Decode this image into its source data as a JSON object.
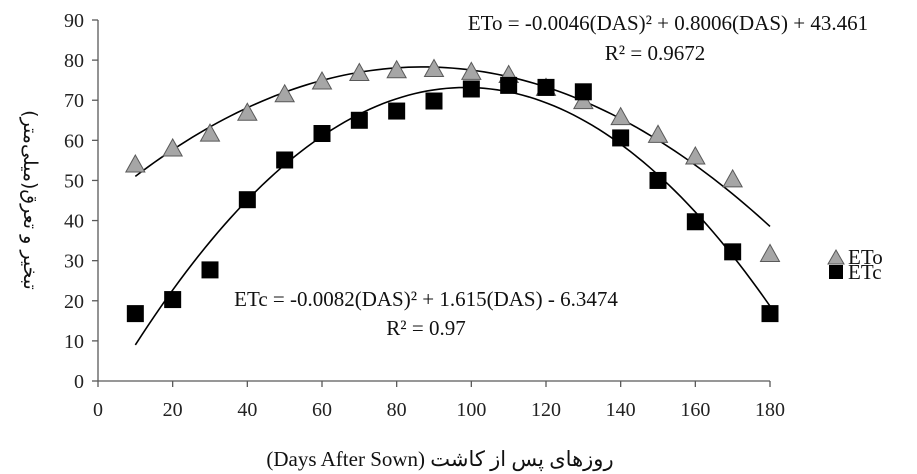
{
  "chart_data": {
    "type": "scatter",
    "xlabel": "روزهای پس از کاشت (Days After Sown)",
    "ylabel": "تبخیر و تعرق(میلی‌متر)",
    "xlim": [
      0,
      180
    ],
    "ylim": [
      0,
      90
    ],
    "x_ticks": [
      "0",
      "20",
      "40",
      "60",
      "80",
      "100",
      "120",
      "140",
      "160",
      "180"
    ],
    "y_ticks": [
      "0",
      "10",
      "20",
      "30",
      "40",
      "50",
      "60",
      "70",
      "80",
      "90"
    ],
    "grid": false,
    "legend_position": "right",
    "series": [
      {
        "name": "ETo",
        "marker": "triangle",
        "color": "#a6a6a6",
        "stroke": "#595959",
        "x": [
          10,
          20,
          30,
          40,
          50,
          60,
          70,
          80,
          90,
          100,
          110,
          120,
          130,
          140,
          150,
          160,
          170,
          180
        ],
        "y": [
          53.8,
          57.8,
          61.5,
          66.7,
          71.3,
          74.5,
          76.6,
          77.3,
          77.6,
          76.9,
          76.1,
          72.9,
          69.6,
          65.6,
          61.2,
          55.8,
          50.1,
          31.5
        ],
        "trend": {
          "a": -0.0046,
          "b": 0.8006,
          "c": 43.461
        },
        "equation": "ETo = -0.0046(DAS)² + 0.8006(DAS) + 43.461",
        "r2": "R² = 0.9672"
      },
      {
        "name": "ETc",
        "marker": "square",
        "color": "#000000",
        "stroke": "#000000",
        "x": [
          10,
          20,
          30,
          40,
          50,
          60,
          70,
          80,
          90,
          100,
          110,
          120,
          130,
          140,
          150,
          160,
          170,
          180
        ],
        "y": [
          16.8,
          20.3,
          27.7,
          45.2,
          55.1,
          61.7,
          65.0,
          67.3,
          69.8,
          72.8,
          73.7,
          73.2,
          72.1,
          60.6,
          50.0,
          39.7,
          32.2,
          16.8
        ],
        "trend": {
          "a": -0.0082,
          "b": 1.615,
          "c": -6.3474
        },
        "equation": "ETc = -0.0082(DAS)² + 1.615(DAS) - 6.3474",
        "r2": "R² = 0.97"
      }
    ]
  }
}
